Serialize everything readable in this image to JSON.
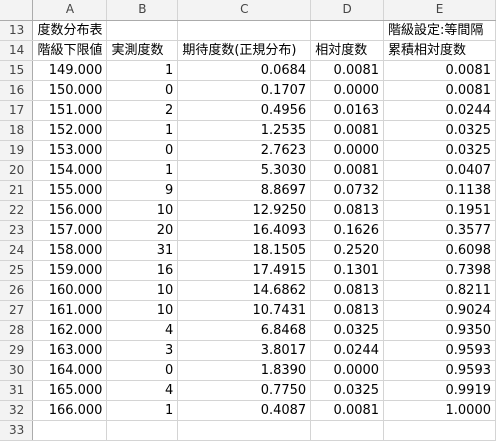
{
  "columns": [
    "A",
    "B",
    "C",
    "D",
    "E"
  ],
  "title_row": {
    "row": "13",
    "a": "度数分布表",
    "e": "階級設定:等間隔"
  },
  "header_row": {
    "row": "14",
    "a": "階級下限値",
    "b": "実測度数",
    "c": "期待度数(正規分布)",
    "d": "相対度数",
    "e": "累積相対度数"
  },
  "rows": [
    {
      "row": "15",
      "a": "149.000",
      "b": "1",
      "c": "0.0684",
      "d": "0.0081",
      "e": "0.0081"
    },
    {
      "row": "16",
      "a": "150.000",
      "b": "0",
      "c": "0.1707",
      "d": "0.0000",
      "e": "0.0081"
    },
    {
      "row": "17",
      "a": "151.000",
      "b": "2",
      "c": "0.4956",
      "d": "0.0163",
      "e": "0.0244"
    },
    {
      "row": "18",
      "a": "152.000",
      "b": "1",
      "c": "1.2535",
      "d": "0.0081",
      "e": "0.0325"
    },
    {
      "row": "19",
      "a": "153.000",
      "b": "0",
      "c": "2.7623",
      "d": "0.0000",
      "e": "0.0325"
    },
    {
      "row": "20",
      "a": "154.000",
      "b": "1",
      "c": "5.3030",
      "d": "0.0081",
      "e": "0.0407"
    },
    {
      "row": "21",
      "a": "155.000",
      "b": "9",
      "c": "8.8697",
      "d": "0.0732",
      "e": "0.1138"
    },
    {
      "row": "22",
      "a": "156.000",
      "b": "10",
      "c": "12.9250",
      "d": "0.0813",
      "e": "0.1951"
    },
    {
      "row": "23",
      "a": "157.000",
      "b": "20",
      "c": "16.4093",
      "d": "0.1626",
      "e": "0.3577"
    },
    {
      "row": "24",
      "a": "158.000",
      "b": "31",
      "c": "18.1505",
      "d": "0.2520",
      "e": "0.6098"
    },
    {
      "row": "25",
      "a": "159.000",
      "b": "16",
      "c": "17.4915",
      "d": "0.1301",
      "e": "0.7398"
    },
    {
      "row": "26",
      "a": "160.000",
      "b": "10",
      "c": "14.6862",
      "d": "0.0813",
      "e": "0.8211"
    },
    {
      "row": "27",
      "a": "161.000",
      "b": "10",
      "c": "10.7431",
      "d": "0.0813",
      "e": "0.9024"
    },
    {
      "row": "28",
      "a": "162.000",
      "b": "4",
      "c": "6.8468",
      "d": "0.0325",
      "e": "0.9350"
    },
    {
      "row": "29",
      "a": "163.000",
      "b": "3",
      "c": "3.8017",
      "d": "0.0244",
      "e": "0.9593"
    },
    {
      "row": "30",
      "a": "164.000",
      "b": "0",
      "c": "1.8390",
      "d": "0.0000",
      "e": "0.9593"
    },
    {
      "row": "31",
      "a": "165.000",
      "b": "4",
      "c": "0.7750",
      "d": "0.0325",
      "e": "0.9919"
    },
    {
      "row": "32",
      "a": "166.000",
      "b": "1",
      "c": "0.4087",
      "d": "0.0081",
      "e": "1.0000"
    }
  ],
  "empty_row": {
    "row": "33"
  }
}
